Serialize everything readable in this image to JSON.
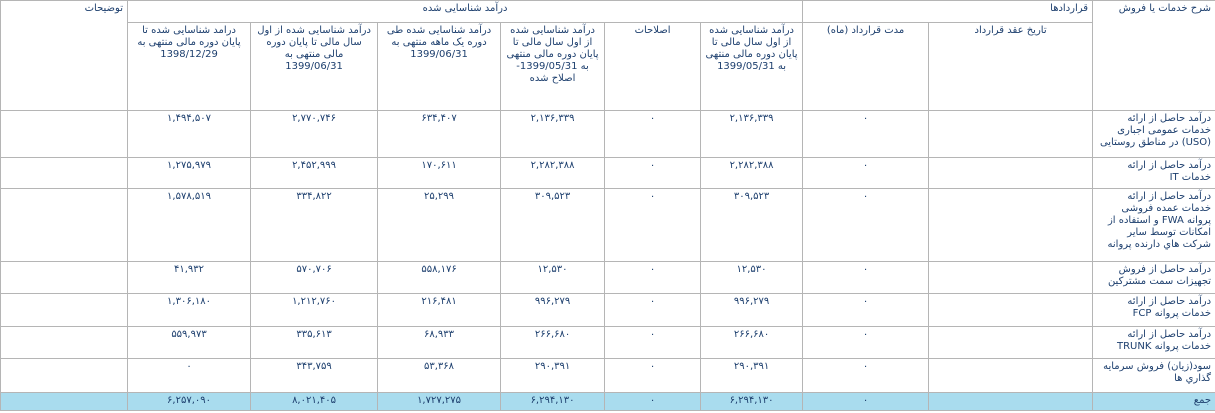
{
  "table": {
    "group_headers": {
      "description": "شرح خدمات یا فروش",
      "contracts": "قراردادها",
      "revenue": "درآمد شناسایی شده",
      "notes": "توضیحات"
    },
    "columns": {
      "contract_date": "تاریخ عقد قرارداد",
      "duration": "مدت قرارداد (ماه)",
      "rev_0531": "درآمد شناسایی شده از اول سال مالی تا پایان دوره مالی منتهی به 1399/05/31",
      "adjustments": "اصلاحات",
      "rev_0531_adj": "درآمد شناسایی شده از اول سال مالی تا پایان دوره مالی منتهی به 1399/05/31-اصلاح شده",
      "rev_month": "درآمد شناسایی شده طی دوره یک ماهه منتهی به 1399/06/31",
      "rev_0631": "درآمد شناسایی شده از اول سال مالی تا پایان دوره مالی منتهی به 1399/06/31",
      "rev_981229": "درامد شناسایی شده تا پایان دوره مالی منتهی به 1398/12/29"
    },
    "rows": [
      {
        "description": "درآمد حاصل از ارائه خدمات عمومی اجباری (USO) در مناطق روستایی",
        "duration": "۰",
        "rev_0531": "۲,۱۳۶,۳۳۹",
        "adjustments": "۰",
        "rev_0531_adj": "۲,۱۳۶,۳۳۹",
        "rev_month": "۶۳۴,۴۰۷",
        "rev_0631": "۲,۷۷۰,۷۴۶",
        "rev_981229": "۱,۴۹۴,۵۰۷"
      },
      {
        "description": "درآمد حاصل از ارائه خدمات IT",
        "duration": "۰",
        "rev_0531": "۲,۲۸۲,۳۸۸",
        "adjustments": "۰",
        "rev_0531_adj": "۲,۲۸۲,۳۸۸",
        "rev_month": "۱۷۰,۶۱۱",
        "rev_0631": "۲,۴۵۲,۹۹۹",
        "rev_981229": "۱,۲۷۵,۹۷۹"
      },
      {
        "description": "درآمد حاصل از ارائه خدمات عمده فروشی پروانه FWA و استفاده از امکانات توسط سایر شرکت هاي دارنده پروانه",
        "duration": "۰",
        "rev_0531": "۳۰۹,۵۲۳",
        "adjustments": "۰",
        "rev_0531_adj": "۳۰۹,۵۲۳",
        "rev_month": "۲۵,۲۹۹",
        "rev_0631": "۳۳۴,۸۲۲",
        "rev_981229": "۱,۵۷۸,۵۱۹"
      },
      {
        "description": "درآمد حاصل از فروش تجهیزات سمت مشترکین",
        "duration": "۰",
        "rev_0531": "۱۲,۵۳۰",
        "adjustments": "۰",
        "rev_0531_adj": "۱۲,۵۳۰",
        "rev_month": "۵۵۸,۱۷۶",
        "rev_0631": "۵۷۰,۷۰۶",
        "rev_981229": "۴۱,۹۳۲"
      },
      {
        "description": "درآمد حاصل از ارائه خدمات پروانه FCP",
        "duration": "۰",
        "rev_0531": "۹۹۶,۲۷۹",
        "adjustments": "۰",
        "rev_0531_adj": "۹۹۶,۲۷۹",
        "rev_month": "۲۱۶,۴۸۱",
        "rev_0631": "۱,۲۱۲,۷۶۰",
        "rev_981229": "۱,۳۰۶,۱۸۰"
      },
      {
        "description": "درآمد حاصل از ارائه خدمات پروانه TRUNK",
        "duration": "۰",
        "rev_0531": "۲۶۶,۶۸۰",
        "adjustments": "۰",
        "rev_0531_adj": "۲۶۶,۶۸۰",
        "rev_month": "۶۸,۹۳۳",
        "rev_0631": "۳۳۵,۶۱۳",
        "rev_981229": "۵۵۹,۹۷۳"
      },
      {
        "description": "سود(زیان) فروش سرمایه گذاري ها",
        "duration": "۰",
        "rev_0531": "۲۹۰,۳۹۱",
        "adjustments": "۰",
        "rev_0531_adj": "۲۹۰,۳۹۱",
        "rev_month": "۵۳,۳۶۸",
        "rev_0631": "۳۴۳,۷۵۹",
        "rev_981229": "۰"
      }
    ],
    "total": {
      "description": "جمع",
      "duration": "۰",
      "rev_0531": "۶,۲۹۴,۱۳۰",
      "adjustments": "۰",
      "rev_0531_adj": "۶,۲۹۴,۱۳۰",
      "rev_month": "۱,۷۲۷,۲۷۵",
      "rev_0631": "۸,۰۲۱,۴۰۵",
      "rev_981229": "۶,۲۵۷,۰۹۰"
    }
  }
}
